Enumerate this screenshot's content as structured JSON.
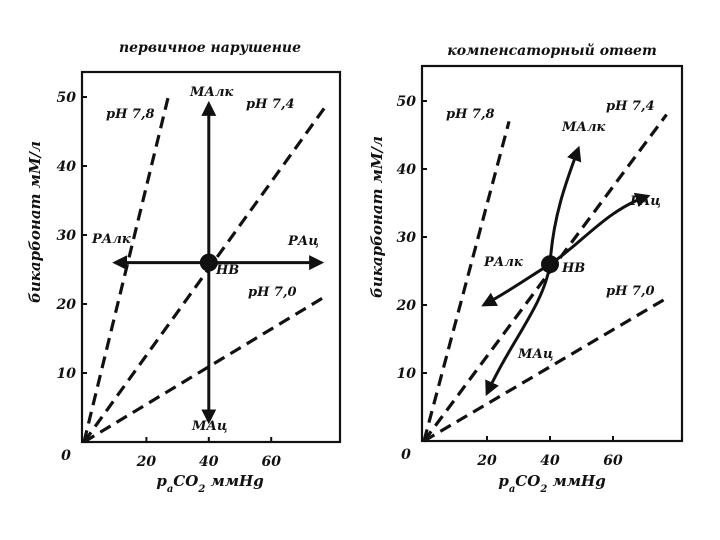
{
  "chart_data": [
    {
      "type": "line",
      "title": "первичное нарушение",
      "xlabel": "paCO2 ммHg",
      "ylabel": "бикарбонат мМ/л",
      "xlim": [
        0,
        80
      ],
      "ylim": [
        0,
        55
      ],
      "x_ticks": [
        "20",
        "40",
        "60"
      ],
      "y_ticks": [
        "10",
        "20",
        "30",
        "40",
        "50"
      ],
      "origin_label": "0",
      "grid": false,
      "isopleths": [
        {
          "label": "pH 7,8",
          "from": [
            0,
            0
          ],
          "to": [
            27,
            50
          ]
        },
        {
          "label": "pH 7,4",
          "from": [
            0,
            0
          ],
          "to": [
            78,
            49
          ]
        },
        {
          "label": "pH 7,0",
          "from": [
            0,
            0
          ],
          "to": [
            77,
            21
          ]
        }
      ],
      "center_point": {
        "label": "НВ",
        "x": 40,
        "y": 26
      },
      "arrows": [
        {
          "label": "МАлк",
          "from": [
            40,
            26
          ],
          "to": [
            40,
            49
          ]
        },
        {
          "label": "МАц",
          "from": [
            40,
            26
          ],
          "to": [
            40,
            3
          ]
        },
        {
          "label": "РАлк",
          "from": [
            40,
            26
          ],
          "to": [
            10,
            26
          ]
        },
        {
          "label": "РАц",
          "from": [
            40,
            26
          ],
          "to": [
            76,
            26
          ]
        }
      ]
    },
    {
      "type": "line",
      "title": "компенсаторный ответ",
      "xlabel": "paCO2 ммHg",
      "ylabel": "бикарбонат мМ/л",
      "xlim": [
        0,
        80
      ],
      "ylim": [
        0,
        55
      ],
      "x_ticks": [
        "20",
        "40",
        "60"
      ],
      "y_ticks": [
        "10",
        "20",
        "30",
        "40",
        "50"
      ],
      "origin_label": "0",
      "grid": false,
      "isopleths": [
        {
          "label": "pH 7,8",
          "from": [
            0,
            0
          ],
          "to": [
            27,
            47
          ]
        },
        {
          "label": "pH 7,4",
          "from": [
            0,
            0
          ],
          "to": [
            77,
            48
          ]
        },
        {
          "label": "pH 7,0",
          "from": [
            0,
            0
          ],
          "to": [
            77,
            21
          ]
        }
      ],
      "center_point": {
        "label": "НВ",
        "x": 40,
        "y": 26
      },
      "arrows": [
        {
          "label": "МАлк",
          "points": [
            [
              40,
              26
            ],
            [
              41,
              33
            ],
            [
              45,
              38
            ],
            [
              49,
              43
            ]
          ]
        },
        {
          "label": "МАц",
          "points": [
            [
              40,
              26
            ],
            [
              38,
              20
            ],
            [
              28,
              15
            ],
            [
              20,
              7
            ]
          ]
        },
        {
          "label": "РАлк",
          "points": [
            [
              40,
              26
            ],
            [
              33,
              24
            ],
            [
              27,
              22
            ],
            [
              19,
              20
            ]
          ]
        },
        {
          "label": "РАц",
          "points": [
            [
              40,
              26
            ],
            [
              50,
              29
            ],
            [
              58,
              34
            ],
            [
              71,
              36
            ]
          ]
        }
      ]
    }
  ]
}
